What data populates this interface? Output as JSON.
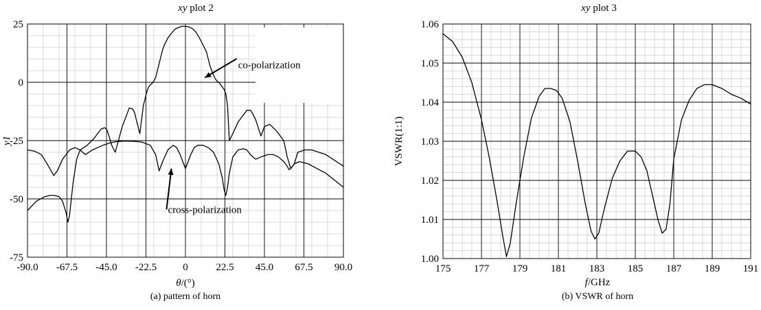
{
  "chart_data": [
    {
      "type": "line",
      "title_italic": "xy",
      "title_rest": " plot 2",
      "ylabel": "y1",
      "xlabel_symbol": "θ",
      "xlabel_unit": "/(°)",
      "caption": "(a) pattern of horn",
      "xlim": [
        -90,
        90
      ],
      "ylim": [
        -75,
        25
      ],
      "xticks": [
        -90,
        -67.5,
        -45,
        -22.5,
        0,
        22.5,
        45,
        67.5,
        90
      ],
      "xtick_labels": [
        "-90.0",
        "-67.5",
        "-45.0",
        "-22.5",
        "0",
        "22.5",
        "45.0",
        "67.5",
        "90.0"
      ],
      "yticks": [
        -75,
        -50,
        -25,
        0,
        25
      ],
      "ytick_labels": [
        "-75",
        "-50",
        "-25",
        "0",
        "25"
      ],
      "grid": true,
      "annotations": [
        {
          "text": "co-polarization",
          "x": 30,
          "y": 6,
          "arrow_to": [
            11,
            2
          ]
        },
        {
          "text": "cross-polarization",
          "x": -10,
          "y": -56,
          "arrow_to": [
            -8,
            -37
          ]
        }
      ],
      "series": [
        {
          "x": [
            -90,
            -85,
            -80,
            -77,
            -75,
            -72,
            -70,
            -68,
            -67,
            -66,
            -64,
            -62,
            -60,
            -56,
            -52,
            -48,
            -46,
            -45,
            -44,
            -42,
            -40,
            -36,
            -33,
            -32,
            -30,
            -29,
            -28,
            -26,
            -24,
            -22,
            -21,
            -20,
            -19,
            -18,
            -17,
            -16,
            -15,
            -14,
            -13,
            -12,
            -10,
            -8,
            -6,
            -4,
            -2,
            0,
            2,
            4,
            6,
            8,
            10,
            12,
            13,
            14,
            15,
            16,
            17,
            18,
            19,
            20,
            21,
            22,
            23,
            24,
            25,
            27,
            30,
            32,
            35,
            37,
            38,
            40,
            43,
            45,
            48,
            52,
            56,
            58,
            60,
            62,
            64,
            68,
            72,
            76,
            80,
            84,
            88,
            90
          ],
          "y": [
            -55,
            -51,
            -49,
            -48.5,
            -48.5,
            -49,
            -51,
            -56,
            -60,
            -57,
            -43,
            -33,
            -29,
            -27,
            -24,
            -20,
            -19.5,
            -20,
            -22,
            -27,
            -30,
            -19,
            -13,
            -11,
            -11.5,
            -13,
            -16,
            -22,
            -10,
            -4,
            -2,
            -1,
            -0.5,
            0.5,
            2,
            5,
            8,
            11,
            14,
            16,
            19,
            21,
            22.8,
            23.5,
            24,
            24,
            23.8,
            23,
            21.5,
            19,
            16,
            13,
            10,
            7,
            5,
            3,
            1.5,
            0.5,
            0,
            -1,
            -2,
            -3,
            -5,
            -10,
            -25,
            -22,
            -17,
            -15,
            -12,
            -12,
            -13,
            -16,
            -23,
            -19,
            -18,
            -21,
            -25,
            -32,
            -37,
            -35,
            -30,
            -29,
            -29,
            -30,
            -31,
            -33,
            -35,
            -36
          ]
        },
        {
          "x": [
            -90,
            -86,
            -82,
            -78,
            -75,
            -73,
            -70,
            -66,
            -63,
            -60,
            -57,
            -53,
            -50,
            -47,
            -45,
            -43,
            -40,
            -35,
            -30,
            -25,
            -20,
            -17,
            -15,
            -13,
            -10,
            -7,
            -5,
            -3,
            -1,
            0,
            1,
            3,
            5,
            7,
            10,
            13,
            16,
            19,
            21,
            22,
            23,
            24,
            25,
            27,
            30,
            33,
            35,
            37,
            40,
            43,
            47,
            50,
            53,
            56,
            58,
            59,
            60,
            62,
            65,
            70,
            75,
            80,
            85,
            90
          ],
          "y": [
            -29,
            -29.5,
            -31,
            -36,
            -40,
            -38,
            -33,
            -29,
            -28,
            -29,
            -31,
            -29,
            -28,
            -27,
            -26.5,
            -26,
            -25.5,
            -25.2,
            -25.3,
            -25.6,
            -27,
            -31,
            -38,
            -34,
            -29,
            -27,
            -28,
            -31,
            -35,
            -37,
            -35,
            -31,
            -28,
            -27,
            -27,
            -28,
            -30,
            -35,
            -41,
            -46,
            -48.5,
            -45,
            -39,
            -32,
            -29,
            -28.5,
            -29,
            -31,
            -33,
            -32,
            -31,
            -31,
            -32,
            -34,
            -36,
            -37.5,
            -37,
            -35,
            -34,
            -35,
            -37,
            -39,
            -42,
            -45
          ]
        }
      ]
    },
    {
      "type": "line",
      "title_italic": "xy",
      "title_rest": " plot 3",
      "ylabel": "VSWR(1:1)",
      "xlabel_symbol": "f",
      "xlabel_unit": "/GHz",
      "caption": "(b) VSWR of horn",
      "xlim": [
        175,
        191
      ],
      "ylim": [
        1.0,
        1.06
      ],
      "xticks": [
        175,
        177,
        179,
        181,
        183,
        185,
        187,
        189,
        191
      ],
      "xtick_labels": [
        "175",
        "177",
        "179",
        "181",
        "183",
        "185",
        "187",
        "189",
        "191"
      ],
      "yticks": [
        1.0,
        1.01,
        1.02,
        1.03,
        1.04,
        1.05,
        1.06
      ],
      "ytick_labels": [
        "1.00",
        "1.01",
        "1.02",
        "1.03",
        "1.04",
        "1.05",
        "1.06"
      ],
      "grid": true,
      "series": [
        {
          "x": [
            175,
            175.5,
            176,
            176.5,
            177,
            177.4,
            177.8,
            178.1,
            178.3,
            178.5,
            178.8,
            179.2,
            179.6,
            180,
            180.3,
            180.6,
            180.9,
            181.2,
            181.6,
            182,
            182.4,
            182.7,
            182.9,
            183.1,
            183.4,
            183.8,
            184.2,
            184.6,
            185,
            185.3,
            185.6,
            185.9,
            186.2,
            186.4,
            186.6,
            186.8,
            187,
            187.4,
            187.8,
            188.2,
            188.6,
            189,
            189.5,
            190,
            190.5,
            191
          ],
          "y": [
            1.0575,
            1.0555,
            1.0515,
            1.045,
            1.0355,
            1.026,
            1.015,
            1.006,
            1.0005,
            1.004,
            1.014,
            1.026,
            1.036,
            1.0415,
            1.0435,
            1.0435,
            1.043,
            1.041,
            1.035,
            1.025,
            1.014,
            1.007,
            1.005,
            1.0065,
            1.013,
            1.0205,
            1.025,
            1.0275,
            1.0275,
            1.026,
            1.0225,
            1.016,
            1.0095,
            1.0065,
            1.0075,
            1.014,
            1.0255,
            1.0355,
            1.0405,
            1.0435,
            1.0445,
            1.0445,
            1.0435,
            1.042,
            1.041,
            1.0395
          ]
        }
      ]
    }
  ]
}
